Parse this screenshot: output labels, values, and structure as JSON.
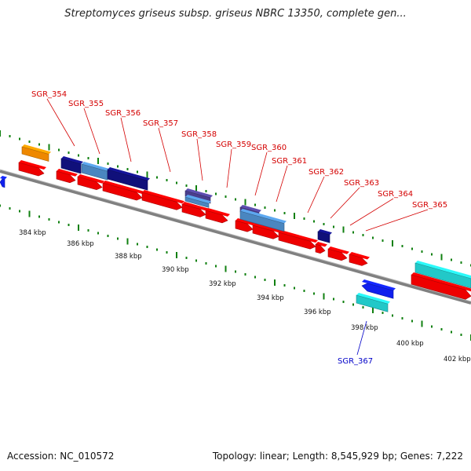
{
  "title": "Streptomyces griseus subsp. griseus NBRC 13350, complete gen...",
  "footer": {
    "accession": "Accession: NC_010572",
    "topology": "Topology: linear; Length: 8,545,929 bp; Genes: 7,222"
  },
  "colors": {
    "cds_red": "#ee0000",
    "gene_navy": "#10107a",
    "gene_steel": "#4a86c0",
    "gene_purple": "#4a3e8c",
    "gene_orange": "#ee8800",
    "gene_cyan": "#22c8c8",
    "gene_blue": "#1020ee",
    "backbone": "#808080",
    "tick": "#108010",
    "label_red": "#d40000",
    "label_blue": "#0000c8"
  },
  "ruler": [
    "384 kbp",
    "386 kbp",
    "388 kbp",
    "390 kbp",
    "392 kbp",
    "394 kbp",
    "396 kbp",
    "398 kbp",
    "400 kbp",
    "402 kbp"
  ],
  "gene_labels_forward": [
    "SGR_354",
    "SGR_355",
    "SGR_356",
    "SGR_357",
    "SGR_358",
    "SGR_359",
    "SGR_360",
    "SGR_361",
    "SGR_362",
    "SGR_363",
    "SGR_364",
    "SGR_365"
  ],
  "gene_labels_reverse": [
    "SGR_367"
  ]
}
